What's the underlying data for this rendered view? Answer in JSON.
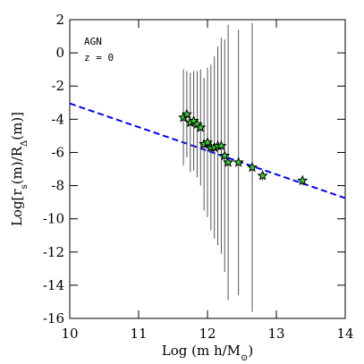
{
  "chart_data": {
    "type": "scatter",
    "annotations": [
      "AGN",
      "z = 0"
    ],
    "x_label": [
      {
        "text": "Log (m h/M"
      },
      {
        "sub": "⊙"
      },
      {
        "text": ")"
      }
    ],
    "y_label": [
      {
        "text": "Log[r"
      },
      {
        "sub": "s"
      },
      {
        "text": "(m)/R"
      },
      {
        "sub": "Δ"
      },
      {
        "text": "(m)]"
      }
    ],
    "x": [
      11.65,
      11.7,
      11.75,
      11.8,
      11.85,
      11.9,
      11.95,
      12.0,
      12.05,
      12.1,
      12.15,
      12.2,
      12.25,
      12.3,
      12.45,
      12.65,
      12.8,
      13.38
    ],
    "series": [
      {
        "color": "#33cc33",
        "values": [
          -3.9,
          -3.7,
          -4.2,
          -4.1,
          -4.3,
          -4.5,
          -5.5,
          -5.4,
          -5.7,
          -5.7,
          -5.6,
          -5.6,
          -6.2,
          -6.6,
          -6.6,
          -6.9,
          -7.4,
          -7.7
        ],
        "errors": [
          2.9,
          2.6,
          3.0,
          3.0,
          3.2,
          3.5,
          4.0,
          4.5,
          5.0,
          5.5,
          6.0,
          6.5,
          7.0,
          8.3,
          8.0,
          8.7,
          0.3,
          0.3
        ]
      }
    ],
    "fit": {
      "x": [
        10,
        14
      ],
      "y": [
        -3.05,
        -8.75
      ],
      "color": "#0000ff"
    },
    "xlim": [
      10,
      14
    ],
    "ylim": [
      -16,
      2
    ],
    "xticks": [
      10,
      11,
      12,
      13,
      14
    ],
    "yticks": [
      -16,
      -14,
      -12,
      -10,
      -8,
      -6,
      -4,
      -2,
      0,
      2
    ]
  }
}
